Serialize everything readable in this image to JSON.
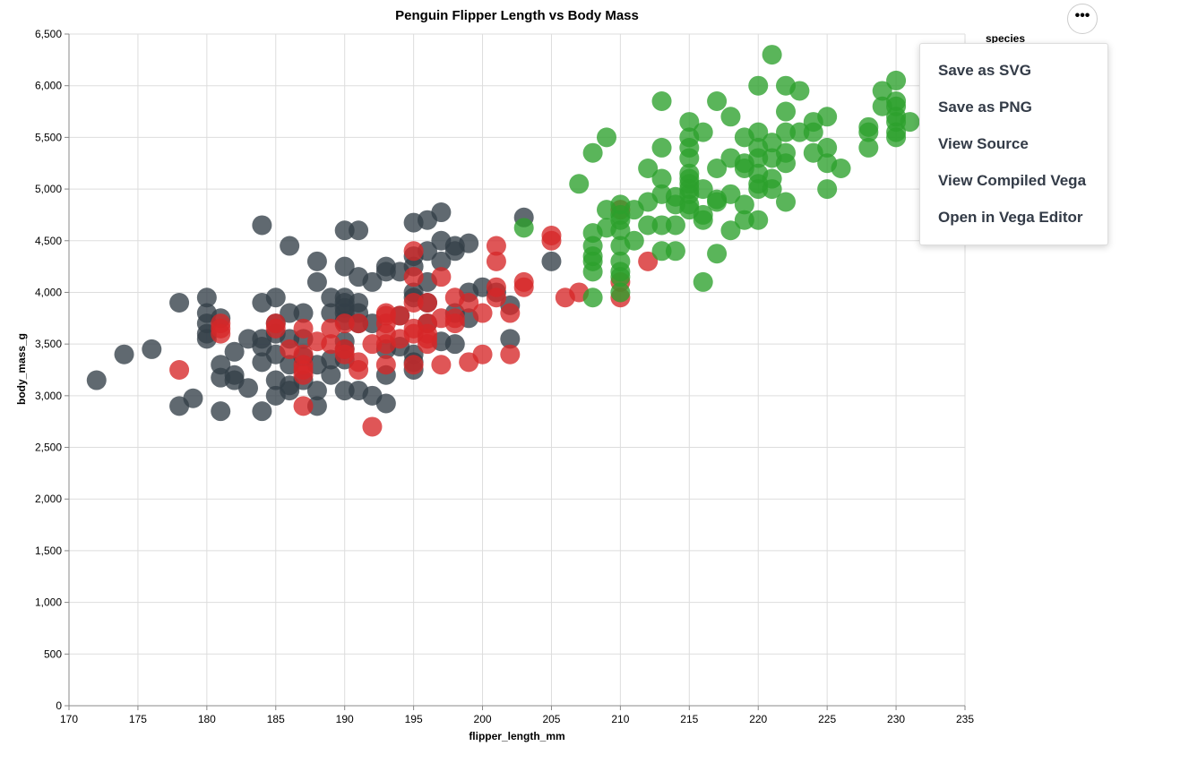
{
  "chart_data": {
    "type": "scatter",
    "title": "Penguin Flipper Length vs Body Mass",
    "xlabel": "flipper_length_mm",
    "ylabel": "body_mass_g",
    "xlim": [
      170,
      235
    ],
    "ylim": [
      0,
      6500
    ],
    "x_ticks": [
      "170",
      "175",
      "180",
      "185",
      "190",
      "195",
      "200",
      "205",
      "210",
      "215",
      "220",
      "225",
      "230",
      "235"
    ],
    "y_ticks": [
      "0",
      "500",
      "1,000",
      "1,500",
      "2,000",
      "2,500",
      "3,000",
      "3,500",
      "4,000",
      "4,500",
      "5,000",
      "5,500",
      "6,000",
      "6,500"
    ],
    "grid": true,
    "legend_title": "species",
    "colors": [
      "#333f48",
      "#d62728",
      "#2ca02c"
    ],
    "series": [
      {
        "color": "#333f48",
        "points": [
          [
            172,
            3150
          ],
          [
            174,
            3400
          ],
          [
            176,
            3450
          ],
          [
            178,
            3900
          ],
          [
            178,
            2900
          ],
          [
            179,
            2975
          ],
          [
            180,
            3950
          ],
          [
            180,
            3800
          ],
          [
            180,
            3700
          ],
          [
            180,
            3600
          ],
          [
            180,
            3550
          ],
          [
            181,
            2850
          ],
          [
            181,
            3175
          ],
          [
            181,
            3300
          ],
          [
            181,
            3750
          ],
          [
            182,
            3200
          ],
          [
            182,
            3150
          ],
          [
            182,
            3425
          ],
          [
            183,
            3075
          ],
          [
            183,
            3550
          ],
          [
            184,
            4650
          ],
          [
            184,
            3900
          ],
          [
            184,
            3550
          ],
          [
            184,
            3475
          ],
          [
            184,
            3325
          ],
          [
            184,
            2850
          ],
          [
            185,
            3950
          ],
          [
            185,
            3700
          ],
          [
            185,
            3600
          ],
          [
            185,
            3400
          ],
          [
            185,
            3150
          ],
          [
            185,
            3000
          ],
          [
            186,
            4450
          ],
          [
            186,
            3800
          ],
          [
            186,
            3550
          ],
          [
            186,
            3300
          ],
          [
            186,
            3100
          ],
          [
            186,
            3050
          ],
          [
            187,
            3800
          ],
          [
            187,
            3550
          ],
          [
            187,
            3375
          ],
          [
            187,
            3150
          ],
          [
            188,
            4300
          ],
          [
            188,
            4100
          ],
          [
            188,
            3300
          ],
          [
            188,
            3050
          ],
          [
            188,
            2900
          ],
          [
            189,
            3950
          ],
          [
            189,
            3800
          ],
          [
            189,
            3350
          ],
          [
            189,
            3200
          ],
          [
            190,
            4600
          ],
          [
            190,
            4250
          ],
          [
            190,
            3950
          ],
          [
            190,
            3900
          ],
          [
            190,
            3850
          ],
          [
            190,
            3800
          ],
          [
            190,
            3725
          ],
          [
            190,
            3525
          ],
          [
            190,
            3450
          ],
          [
            190,
            3350
          ],
          [
            190,
            3050
          ],
          [
            191,
            4600
          ],
          [
            191,
            4150
          ],
          [
            191,
            3900
          ],
          [
            191,
            3800
          ],
          [
            191,
            3700
          ],
          [
            191,
            3050
          ],
          [
            192,
            4100
          ],
          [
            192,
            3700
          ],
          [
            192,
            3000
          ],
          [
            193,
            4250
          ],
          [
            193,
            4200
          ],
          [
            193,
            3450
          ],
          [
            193,
            3200
          ],
          [
            193,
            2925
          ],
          [
            194,
            4200
          ],
          [
            194,
            3775
          ],
          [
            194,
            3475
          ],
          [
            195,
            4675
          ],
          [
            195,
            4350
          ],
          [
            195,
            4250
          ],
          [
            195,
            4000
          ],
          [
            195,
            3950
          ],
          [
            195,
            3400
          ],
          [
            195,
            3325
          ],
          [
            195,
            3250
          ],
          [
            196,
            4700
          ],
          [
            196,
            4400
          ],
          [
            196,
            4100
          ],
          [
            196,
            3900
          ],
          [
            196,
            3700
          ],
          [
            197,
            4775
          ],
          [
            197,
            4500
          ],
          [
            197,
            4300
          ],
          [
            197,
            3525
          ],
          [
            198,
            4450
          ],
          [
            198,
            4400
          ],
          [
            198,
            3800
          ],
          [
            198,
            3500
          ],
          [
            199,
            4475
          ],
          [
            199,
            4000
          ],
          [
            199,
            3750
          ],
          [
            200,
            4050
          ],
          [
            201,
            4000
          ],
          [
            202,
            3875
          ],
          [
            202,
            3550
          ],
          [
            203,
            4725
          ],
          [
            205,
            4300
          ]
        ]
      },
      {
        "color": "#d62728",
        "points": [
          [
            178,
            3250
          ],
          [
            181,
            3700
          ],
          [
            181,
            3650
          ],
          [
            181,
            3600
          ],
          [
            185,
            3700
          ],
          [
            185,
            3650
          ],
          [
            186,
            3450
          ],
          [
            187,
            3650
          ],
          [
            187,
            3400
          ],
          [
            187,
            3300
          ],
          [
            187,
            3250
          ],
          [
            187,
            3200
          ],
          [
            187,
            2900
          ],
          [
            188,
            3525
          ],
          [
            189,
            3650
          ],
          [
            189,
            3500
          ],
          [
            190,
            3700
          ],
          [
            190,
            3450
          ],
          [
            190,
            3400
          ],
          [
            191,
            3700
          ],
          [
            191,
            3325
          ],
          [
            191,
            3250
          ],
          [
            192,
            3500
          ],
          [
            192,
            2700
          ],
          [
            193,
            3800
          ],
          [
            193,
            3775
          ],
          [
            193,
            3700
          ],
          [
            193,
            3600
          ],
          [
            193,
            3500
          ],
          [
            193,
            3300
          ],
          [
            194,
            3775
          ],
          [
            194,
            3550
          ],
          [
            195,
            4400
          ],
          [
            195,
            4150
          ],
          [
            195,
            3900
          ],
          [
            195,
            3650
          ],
          [
            195,
            3600
          ],
          [
            195,
            3300
          ],
          [
            196,
            3900
          ],
          [
            196,
            3700
          ],
          [
            196,
            3600
          ],
          [
            196,
            3550
          ],
          [
            196,
            3500
          ],
          [
            197,
            4150
          ],
          [
            197,
            3750
          ],
          [
            197,
            3300
          ],
          [
            198,
            3950
          ],
          [
            198,
            3750
          ],
          [
            198,
            3700
          ],
          [
            199,
            3900
          ],
          [
            199,
            3325
          ],
          [
            200,
            3800
          ],
          [
            200,
            3400
          ],
          [
            201,
            4450
          ],
          [
            201,
            4300
          ],
          [
            201,
            4050
          ],
          [
            201,
            3950
          ],
          [
            202,
            3800
          ],
          [
            202,
            3400
          ],
          [
            203,
            4100
          ],
          [
            203,
            4050
          ],
          [
            205,
            4550
          ],
          [
            205,
            4500
          ],
          [
            206,
            3950
          ],
          [
            207,
            4000
          ],
          [
            210,
            4800
          ],
          [
            210,
            4100
          ],
          [
            210,
            3950
          ],
          [
            212,
            4300
          ]
        ]
      },
      {
        "color": "#2ca02c",
        "points": [
          [
            203,
            4625
          ],
          [
            207,
            5050
          ],
          [
            208,
            5350
          ],
          [
            208,
            4575
          ],
          [
            208,
            4450
          ],
          [
            208,
            4350
          ],
          [
            208,
            4300
          ],
          [
            208,
            4200
          ],
          [
            208,
            3950
          ],
          [
            209,
            5500
          ],
          [
            209,
            4800
          ],
          [
            209,
            4625
          ],
          [
            210,
            4850
          ],
          [
            210,
            4750
          ],
          [
            210,
            4700
          ],
          [
            210,
            4600
          ],
          [
            210,
            4450
          ],
          [
            210,
            4300
          ],
          [
            210,
            4200
          ],
          [
            210,
            4150
          ],
          [
            210,
            4000
          ],
          [
            211,
            4800
          ],
          [
            211,
            4500
          ],
          [
            212,
            5200
          ],
          [
            212,
            4875
          ],
          [
            212,
            4650
          ],
          [
            213,
            5850
          ],
          [
            213,
            5400
          ],
          [
            213,
            5100
          ],
          [
            213,
            4950
          ],
          [
            213,
            4650
          ],
          [
            213,
            4400
          ],
          [
            214,
            4925
          ],
          [
            214,
            4850
          ],
          [
            214,
            4650
          ],
          [
            214,
            4400
          ],
          [
            215,
            5650
          ],
          [
            215,
            5500
          ],
          [
            215,
            5400
          ],
          [
            215,
            5300
          ],
          [
            215,
            5150
          ],
          [
            215,
            5100
          ],
          [
            215,
            5050
          ],
          [
            215,
            5000
          ],
          [
            215,
            4950
          ],
          [
            215,
            4850
          ],
          [
            215,
            4800
          ],
          [
            216,
            5550
          ],
          [
            216,
            5000
          ],
          [
            216,
            4750
          ],
          [
            216,
            4700
          ],
          [
            216,
            4100
          ],
          [
            217,
            5850
          ],
          [
            217,
            5200
          ],
          [
            217,
            4900
          ],
          [
            217,
            4875
          ],
          [
            217,
            4375
          ],
          [
            218,
            5700
          ],
          [
            218,
            5300
          ],
          [
            218,
            4950
          ],
          [
            218,
            4600
          ],
          [
            219,
            5500
          ],
          [
            219,
            5250
          ],
          [
            219,
            5200
          ],
          [
            219,
            4850
          ],
          [
            219,
            4700
          ],
          [
            220,
            6000
          ],
          [
            220,
            5550
          ],
          [
            220,
            5400
          ],
          [
            220,
            5300
          ],
          [
            220,
            5150
          ],
          [
            220,
            5050
          ],
          [
            220,
            5000
          ],
          [
            220,
            4700
          ],
          [
            221,
            6300
          ],
          [
            221,
            5450
          ],
          [
            221,
            5300
          ],
          [
            221,
            5100
          ],
          [
            221,
            5000
          ],
          [
            222,
            6000
          ],
          [
            222,
            5750
          ],
          [
            222,
            5550
          ],
          [
            222,
            5350
          ],
          [
            222,
            5250
          ],
          [
            222,
            4875
          ],
          [
            223,
            5950
          ],
          [
            223,
            5550
          ],
          [
            224,
            5650
          ],
          [
            224,
            5550
          ],
          [
            224,
            5350
          ],
          [
            225,
            5700
          ],
          [
            225,
            5400
          ],
          [
            225,
            5250
          ],
          [
            225,
            5000
          ],
          [
            226,
            5200
          ],
          [
            228,
            5600
          ],
          [
            228,
            5550
          ],
          [
            228,
            5400
          ],
          [
            229,
            5950
          ],
          [
            229,
            5800
          ],
          [
            230,
            6050
          ],
          [
            230,
            5850
          ],
          [
            230,
            5800
          ],
          [
            230,
            5700
          ],
          [
            230,
            5650
          ],
          [
            230,
            5550
          ],
          [
            230,
            5500
          ],
          [
            231,
            5650
          ]
        ]
      }
    ]
  },
  "legend": {
    "title": "species"
  },
  "menu": {
    "items": [
      "Save as SVG",
      "Save as PNG",
      "View Source",
      "View Compiled Vega",
      "Open in Vega Editor"
    ]
  }
}
